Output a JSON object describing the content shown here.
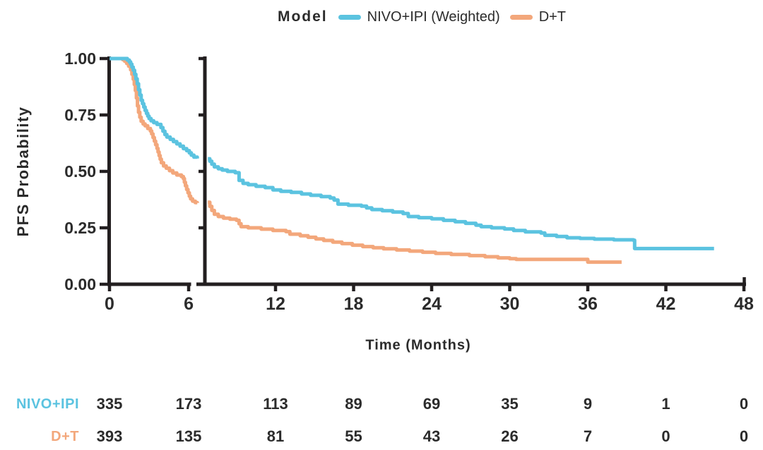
{
  "page": {
    "background": "#FFFFFF"
  },
  "colors": {
    "axis": "#231F20",
    "text": "#2B2B2B",
    "nivo_blue": "#5BC3E0",
    "dt_orange": "#F3A77B"
  },
  "legend": {
    "title": "Model",
    "items": [
      {
        "label": "NIVO+IPI (Weighted)",
        "color": "#5BC3E0"
      },
      {
        "label": "D+T",
        "color": "#F3A77B"
      }
    ]
  },
  "chart_data": {
    "type": "line",
    "subtype": "kaplan-meier-step-curves-with-broken-x-axis",
    "title": "",
    "xlabel": "Time (Months)",
    "ylabel": "PFS Probability",
    "xlim": [
      0,
      48
    ],
    "ylim": [
      0,
      1
    ],
    "grid": false,
    "legend_position": "top",
    "x_axis_break_between_months": [
      6.7,
      6.8
    ],
    "x_ticks": [
      0,
      6,
      12,
      18,
      24,
      30,
      36,
      42,
      48
    ],
    "y_ticks": [
      0,
      0.25,
      0.5,
      0.75,
      1
    ],
    "y_tick_labels": [
      "0.00",
      "0.25",
      "0.50",
      "0.75",
      "1.00"
    ],
    "series": [
      {
        "name": "NIVO+IPI (Weighted)",
        "color": "#5BC3E0",
        "segments": {
          "left": [
            [
              0,
              1
            ],
            [
              1.2,
              1
            ],
            [
              1.35,
              0.993
            ],
            [
              1.5,
              0.985
            ],
            [
              1.6,
              0.975
            ],
            [
              1.7,
              0.962
            ],
            [
              1.8,
              0.948
            ],
            [
              1.9,
              0.93
            ],
            [
              2.0,
              0.91
            ],
            [
              2.1,
              0.888
            ],
            [
              2.2,
              0.862
            ],
            [
              2.3,
              0.838
            ],
            [
              2.4,
              0.815
            ],
            [
              2.5,
              0.8
            ],
            [
              2.6,
              0.785
            ],
            [
              2.7,
              0.77
            ],
            [
              2.8,
              0.757
            ],
            [
              2.9,
              0.745
            ],
            [
              3.0,
              0.734
            ],
            [
              3.15,
              0.724
            ],
            [
              3.35,
              0.716
            ],
            [
              3.6,
              0.708
            ],
            [
              3.9,
              0.694
            ],
            [
              4.05,
              0.678
            ],
            [
              4.2,
              0.663
            ],
            [
              4.35,
              0.652
            ],
            [
              4.6,
              0.642
            ],
            [
              4.85,
              0.632
            ],
            [
              5.1,
              0.622
            ],
            [
              5.35,
              0.612
            ],
            [
              5.6,
              0.601
            ],
            [
              5.85,
              0.592
            ],
            [
              6.05,
              0.582
            ],
            [
              6.2,
              0.572
            ],
            [
              6.4,
              0.563
            ],
            [
              6.65,
              0.557
            ]
          ],
          "right": [
            [
              6.8,
              0.556
            ],
            [
              6.95,
              0.545
            ],
            [
              7.1,
              0.532
            ],
            [
              7.3,
              0.52
            ],
            [
              7.6,
              0.512
            ],
            [
              7.9,
              0.506
            ],
            [
              8.3,
              0.5
            ],
            [
              8.9,
              0.494
            ],
            [
              9.2,
              0.46
            ],
            [
              9.5,
              0.447
            ],
            [
              9.9,
              0.441
            ],
            [
              10.5,
              0.434
            ],
            [
              11.2,
              0.428
            ],
            [
              11.8,
              0.418
            ],
            [
              12.4,
              0.412
            ],
            [
              13.2,
              0.407
            ],
            [
              14.0,
              0.4
            ],
            [
              14.7,
              0.394
            ],
            [
              15.5,
              0.388
            ],
            [
              16.2,
              0.382
            ],
            [
              16.5,
              0.373
            ],
            [
              16.8,
              0.355
            ],
            [
              17.6,
              0.35
            ],
            [
              18.6,
              0.346
            ],
            [
              19.0,
              0.338
            ],
            [
              19.4,
              0.331
            ],
            [
              20.2,
              0.326
            ],
            [
              21.0,
              0.32
            ],
            [
              21.8,
              0.313
            ],
            [
              22.2,
              0.3
            ],
            [
              23.0,
              0.295
            ],
            [
              24.0,
              0.29
            ],
            [
              24.9,
              0.283
            ],
            [
              25.8,
              0.277
            ],
            [
              26.6,
              0.27
            ],
            [
              27.4,
              0.262
            ],
            [
              27.8,
              0.255
            ],
            [
              28.6,
              0.25
            ],
            [
              29.6,
              0.245
            ],
            [
              30.3,
              0.238
            ],
            [
              31.2,
              0.232
            ],
            [
              32.4,
              0.227
            ],
            [
              32.7,
              0.217
            ],
            [
              33.6,
              0.212
            ],
            [
              34.4,
              0.206
            ],
            [
              35.4,
              0.203
            ],
            [
              36.5,
              0.2
            ],
            [
              38.0,
              0.197
            ],
            [
              39.5,
              0.195
            ],
            [
              39.6,
              0.158
            ],
            [
              45.7,
              0.158
            ]
          ]
        }
      },
      {
        "name": "D+T",
        "color": "#F3A77B",
        "segments": {
          "left": [
            [
              0,
              1
            ],
            [
              0.8,
              1
            ],
            [
              1.0,
              0.995
            ],
            [
              1.15,
              0.988
            ],
            [
              1.3,
              0.978
            ],
            [
              1.45,
              0.966
            ],
            [
              1.6,
              0.95
            ],
            [
              1.7,
              0.93
            ],
            [
              1.8,
              0.908
            ],
            [
              1.88,
              0.885
            ],
            [
              1.96,
              0.858
            ],
            [
              2.04,
              0.825
            ],
            [
              2.12,
              0.79
            ],
            [
              2.2,
              0.762
            ],
            [
              2.3,
              0.74
            ],
            [
              2.4,
              0.722
            ],
            [
              2.55,
              0.71
            ],
            [
              2.7,
              0.702
            ],
            [
              2.9,
              0.69
            ],
            [
              3.1,
              0.679
            ],
            [
              3.2,
              0.666
            ],
            [
              3.3,
              0.65
            ],
            [
              3.4,
              0.634
            ],
            [
              3.5,
              0.618
            ],
            [
              3.6,
              0.602
            ],
            [
              3.68,
              0.586
            ],
            [
              3.76,
              0.57
            ],
            [
              3.84,
              0.554
            ],
            [
              3.93,
              0.538
            ],
            [
              4.1,
              0.524
            ],
            [
              4.3,
              0.514
            ],
            [
              4.55,
              0.503
            ],
            [
              4.8,
              0.493
            ],
            [
              5.1,
              0.484
            ],
            [
              5.45,
              0.477
            ],
            [
              5.6,
              0.468
            ],
            [
              5.68,
              0.452
            ],
            [
              5.76,
              0.436
            ],
            [
              5.85,
              0.42
            ],
            [
              5.95,
              0.405
            ],
            [
              6.05,
              0.39
            ],
            [
              6.15,
              0.378
            ],
            [
              6.3,
              0.368
            ],
            [
              6.5,
              0.362
            ],
            [
              6.65,
              0.36
            ]
          ],
          "right": [
            [
              6.8,
              0.363
            ],
            [
              6.95,
              0.345
            ],
            [
              7.1,
              0.327
            ],
            [
              7.3,
              0.31
            ],
            [
              7.6,
              0.3
            ],
            [
              8.0,
              0.293
            ],
            [
              8.5,
              0.288
            ],
            [
              9.0,
              0.283
            ],
            [
              9.2,
              0.268
            ],
            [
              9.35,
              0.255
            ],
            [
              9.9,
              0.25
            ],
            [
              10.9,
              0.244
            ],
            [
              11.8,
              0.238
            ],
            [
              12.8,
              0.233
            ],
            [
              13.1,
              0.222
            ],
            [
              13.9,
              0.215
            ],
            [
              14.5,
              0.208
            ],
            [
              15.1,
              0.201
            ],
            [
              15.7,
              0.194
            ],
            [
              16.4,
              0.187
            ],
            [
              17.1,
              0.18
            ],
            [
              17.9,
              0.173
            ],
            [
              18.7,
              0.167
            ],
            [
              19.5,
              0.162
            ],
            [
              20.3,
              0.157
            ],
            [
              21.3,
              0.152
            ],
            [
              22.3,
              0.147
            ],
            [
              23.3,
              0.142
            ],
            [
              24.3,
              0.137
            ],
            [
              25.5,
              0.132
            ],
            [
              26.9,
              0.127
            ],
            [
              28.1,
              0.122
            ],
            [
              29.1,
              0.117
            ],
            [
              30.0,
              0.113
            ],
            [
              30.5,
              0.11
            ],
            [
              35.8,
              0.11
            ],
            [
              36.0,
              0.098
            ],
            [
              38.6,
              0.098
            ]
          ]
        }
      }
    ]
  },
  "risk_table": {
    "time_points": [
      0,
      6,
      12,
      18,
      24,
      30,
      36,
      42,
      48
    ],
    "rows": [
      {
        "label": "NIVO+IPI",
        "color": "#5BC3E0",
        "values": [
          "335",
          "173",
          "113",
          "89",
          "69",
          "35",
          "9",
          "1",
          "0"
        ]
      },
      {
        "label": "D+T",
        "color": "#F3A77B",
        "values": [
          "393",
          "135",
          "81",
          "55",
          "43",
          "26",
          "7",
          "0",
          "0"
        ]
      }
    ]
  }
}
